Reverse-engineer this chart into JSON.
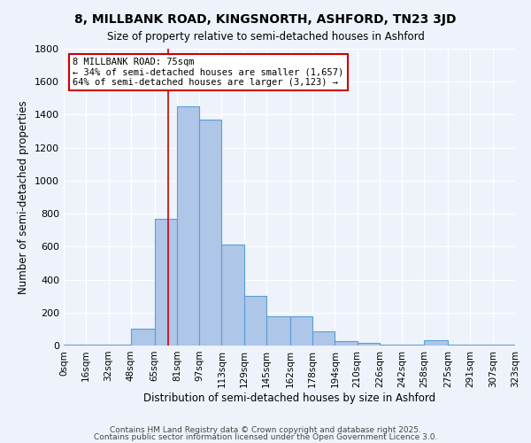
{
  "title1": "8, MILLBANK ROAD, KINGSNORTH, ASHFORD, TN23 3JD",
  "title2": "Size of property relative to semi-detached houses in Ashford",
  "xlabel": "Distribution of semi-detached houses by size in Ashford",
  "ylabel": "Number of semi-detached properties",
  "bin_edges": [
    0,
    16,
    32,
    48,
    65,
    81,
    97,
    113,
    129,
    145,
    162,
    178,
    194,
    210,
    226,
    242,
    258,
    275,
    291,
    307,
    323
  ],
  "bin_labels": [
    "0sqm",
    "16sqm",
    "32sqm",
    "48sqm",
    "65sqm",
    "81sqm",
    "97sqm",
    "113sqm",
    "129sqm",
    "145sqm",
    "162sqm",
    "178sqm",
    "194sqm",
    "210sqm",
    "226sqm",
    "242sqm",
    "258sqm",
    "275sqm",
    "291sqm",
    "307sqm",
    "323sqm"
  ],
  "bar_heights": [
    5,
    5,
    5,
    100,
    770,
    1450,
    1370,
    615,
    300,
    175,
    175,
    85,
    25,
    15,
    5,
    5,
    30,
    5,
    5,
    5
  ],
  "bar_color": "#aec6e8",
  "bar_edge_color": "#5a9fd4",
  "property_size": 75,
  "vline_color": "#cc0000",
  "annotation_line1": "8 MILLBANK ROAD: 75sqm",
  "annotation_line2": "← 34% of semi-detached houses are smaller (1,657)",
  "annotation_line3": "64% of semi-detached houses are larger (3,123) →",
  "annotation_box_color": "#ffffff",
  "annotation_box_edge_color": "#cc0000",
  "ylim": [
    0,
    1800
  ],
  "yticks": [
    0,
    200,
    400,
    600,
    800,
    1000,
    1200,
    1400,
    1600,
    1800
  ],
  "background_color": "#eef3fb",
  "grid_color": "#ffffff",
  "footer1": "Contains HM Land Registry data © Crown copyright and database right 2025.",
  "footer2": "Contains public sector information licensed under the Open Government Licence 3.0."
}
